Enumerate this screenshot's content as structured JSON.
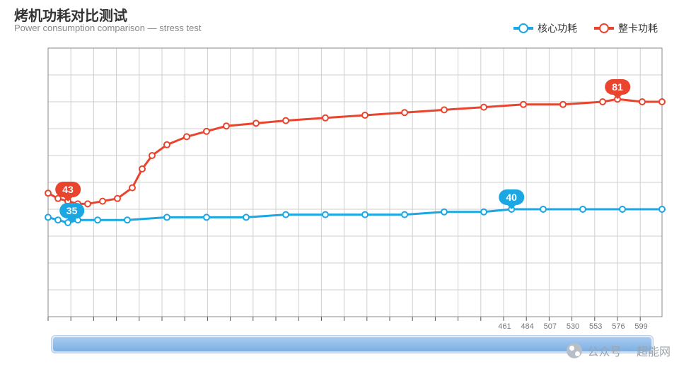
{
  "title": "烤机功耗对比测试",
  "subtitle": "Power consumption comparison — stress test",
  "legend": {
    "series_a": {
      "label": "核心功耗",
      "color": "#1ba7e3"
    },
    "series_b": {
      "label": "整卡功耗",
      "color": "#e8442e"
    }
  },
  "chart": {
    "type": "line",
    "background_color": "#ffffff",
    "grid_color": "#cfcfcf",
    "grid_width": 1,
    "xlim": [
      0,
      620
    ],
    "ylim": [
      0,
      100
    ],
    "ytick_step": 10,
    "xtick_step": 23,
    "xticks_visible": [
      461,
      484,
      507,
      530,
      553,
      576,
      599
    ],
    "line_width": 3,
    "marker_size": 4,
    "callouts": [
      {
        "series": "b",
        "x": 20,
        "value": 43,
        "bg": "#e8442e"
      },
      {
        "series": "a",
        "x": 24,
        "value": 35,
        "bg": "#1ba7e3"
      },
      {
        "series": "a",
        "x": 468,
        "value": 40,
        "bg": "#1ba7e3"
      },
      {
        "series": "b",
        "x": 575,
        "value": 81,
        "bg": "#e8442e"
      }
    ],
    "series": [
      {
        "name": "a",
        "color": "#1ba7e3",
        "points": [
          [
            0,
            37
          ],
          [
            10,
            36
          ],
          [
            20,
            35
          ],
          [
            30,
            36
          ],
          [
            50,
            36
          ],
          [
            80,
            36
          ],
          [
            120,
            37
          ],
          [
            160,
            37
          ],
          [
            200,
            37
          ],
          [
            240,
            38
          ],
          [
            280,
            38
          ],
          [
            320,
            38
          ],
          [
            360,
            38
          ],
          [
            400,
            39
          ],
          [
            440,
            39
          ],
          [
            468,
            40
          ],
          [
            500,
            40
          ],
          [
            540,
            40
          ],
          [
            580,
            40
          ],
          [
            620,
            40
          ]
        ]
      },
      {
        "name": "b",
        "color": "#e8442e",
        "points": [
          [
            0,
            46
          ],
          [
            10,
            44
          ],
          [
            20,
            43
          ],
          [
            30,
            42
          ],
          [
            40,
            42
          ],
          [
            55,
            43
          ],
          [
            70,
            44
          ],
          [
            85,
            48
          ],
          [
            95,
            55
          ],
          [
            105,
            60
          ],
          [
            120,
            64
          ],
          [
            140,
            67
          ],
          [
            160,
            69
          ],
          [
            180,
            71
          ],
          [
            210,
            72
          ],
          [
            240,
            73
          ],
          [
            280,
            74
          ],
          [
            320,
            75
          ],
          [
            360,
            76
          ],
          [
            400,
            77
          ],
          [
            440,
            78
          ],
          [
            480,
            79
          ],
          [
            520,
            79
          ],
          [
            560,
            80
          ],
          [
            575,
            81
          ],
          [
            600,
            80
          ],
          [
            620,
            80
          ]
        ]
      }
    ]
  },
  "scrollbar": {
    "thumb_color": "#6ea7e0",
    "track_color": "#cfdef2"
  },
  "watermark": {
    "source_label": "公众号",
    "name": "超能网"
  }
}
